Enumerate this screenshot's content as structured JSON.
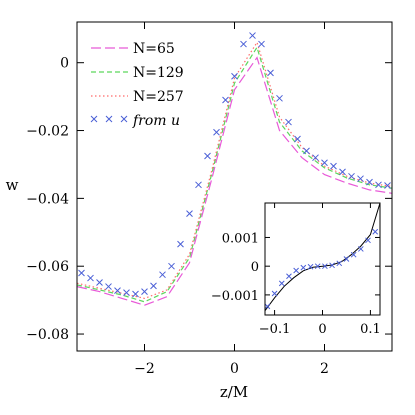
{
  "chart_data": [
    {
      "type": "line",
      "xlabel": "z/M",
      "ylabel": "w",
      "xlim": [
        -3.5,
        3.5
      ],
      "ylim": [
        -0.085,
        0.012
      ],
      "x_ticks": [
        -2,
        0,
        2
      ],
      "x_tick_labels": [
        "−2",
        "0",
        "2"
      ],
      "y_ticks": [
        0,
        -0.02,
        -0.04,
        -0.06,
        -0.08
      ],
      "y_tick_labels": [
        "0",
        "−0.02",
        "−0.04",
        "−0.06",
        "−0.08"
      ],
      "legend_position": "top-left",
      "series": [
        {
          "name": "N=65",
          "style": "long-dash",
          "color": "#e85ad8",
          "x": [
            -3.5,
            -3.0,
            -2.5,
            -2.0,
            -1.5,
            -1.0,
            -0.5,
            0.0,
            0.5,
            1.0,
            1.5,
            2.0,
            2.5,
            3.0,
            3.5
          ],
          "y": [
            -0.066,
            -0.0675,
            -0.0695,
            -0.0715,
            -0.069,
            -0.059,
            -0.034,
            -0.008,
            0.0015,
            -0.02,
            -0.028,
            -0.033,
            -0.0355,
            -0.0375,
            -0.0385
          ]
        },
        {
          "name": "N=129",
          "style": "short-dash",
          "color": "#5cd65c",
          "x": [
            -3.5,
            -3.0,
            -2.5,
            -2.0,
            -1.5,
            -1.0,
            -0.5,
            0.0,
            0.5,
            1.0,
            1.5,
            2.0,
            2.5,
            3.0,
            3.5
          ],
          "y": [
            -0.0655,
            -0.067,
            -0.0685,
            -0.0705,
            -0.0675,
            -0.0575,
            -0.0325,
            -0.006,
            0.0045,
            -0.0175,
            -0.026,
            -0.031,
            -0.034,
            -0.036,
            -0.037
          ]
        },
        {
          "name": "N=257",
          "style": "dotted",
          "color": "#ff6b6b",
          "x": [
            -3.5,
            -3.0,
            -2.5,
            -2.0,
            -1.5,
            -1.0,
            -0.5,
            0.0,
            0.5,
            1.0,
            1.5,
            2.0,
            2.5,
            3.0,
            3.5
          ],
          "y": [
            -0.065,
            -0.0665,
            -0.068,
            -0.0695,
            -0.067,
            -0.0565,
            -0.0315,
            -0.0045,
            0.006,
            -0.016,
            -0.025,
            -0.0305,
            -0.0335,
            -0.0355,
            -0.0365
          ]
        },
        {
          "name": "from u",
          "style": "markers",
          "marker": "x",
          "color": "#4a5fd6",
          "x": [
            -3.4,
            -3.2,
            -3.0,
            -2.8,
            -2.6,
            -2.4,
            -2.2,
            -2.0,
            -1.8,
            -1.6,
            -1.4,
            -1.2,
            -1.0,
            -0.8,
            -0.6,
            -0.4,
            -0.2,
            0.0,
            0.2,
            0.4,
            0.6,
            0.8,
            1.0,
            1.2,
            1.4,
            1.6,
            1.8,
            2.0,
            2.2,
            2.4,
            2.6,
            2.8,
            3.0,
            3.2,
            3.4
          ],
          "y": [
            -0.062,
            -0.0635,
            -0.0648,
            -0.066,
            -0.0672,
            -0.0678,
            -0.0682,
            -0.0675,
            -0.0658,
            -0.0625,
            -0.06,
            -0.0535,
            -0.0445,
            -0.036,
            -0.0275,
            -0.0205,
            -0.011,
            -0.004,
            0.0055,
            0.008,
            0.0055,
            -0.003,
            -0.0105,
            -0.0175,
            -0.0225,
            -0.026,
            -0.028,
            -0.0295,
            -0.0305,
            -0.0322,
            -0.0335,
            -0.0342,
            -0.0352,
            -0.036,
            -0.0362
          ]
        }
      ]
    },
    {
      "type": "line",
      "inset": true,
      "xlim": [
        -0.12,
        0.12
      ],
      "ylim": [
        -0.0017,
        0.0022
      ],
      "x_ticks": [
        -0.1,
        0,
        0.1
      ],
      "x_tick_labels": [
        "−0.1",
        "0",
        "0.1"
      ],
      "y_ticks": [
        0.001,
        0,
        -0.001
      ],
      "y_tick_labels": [
        "0.001",
        "0",
        "−0.001"
      ],
      "series": [
        {
          "style": "solid",
          "color": "#000000",
          "x": [
            -0.12,
            -0.1,
            -0.08,
            -0.06,
            -0.04,
            -0.02,
            0.0,
            0.02,
            0.04,
            0.06,
            0.08,
            0.1,
            0.12
          ],
          "y": [
            -0.00155,
            -0.0011,
            -0.0007,
            -0.0004,
            -0.00016,
            -4e-05,
            0.0,
            4e-05,
            0.00016,
            0.0004,
            0.0007,
            0.0011,
            0.0022
          ]
        },
        {
          "style": "markers",
          "marker": "x",
          "color": "#4a5fd6",
          "x": [
            -0.115,
            -0.1,
            -0.085,
            -0.07,
            -0.055,
            -0.04,
            -0.025,
            -0.01,
            0.005,
            0.02,
            0.035,
            0.05,
            0.065,
            0.08,
            0.095,
            0.11
          ],
          "y": [
            -0.0014,
            -0.00095,
            -0.0006,
            -0.00035,
            -0.00015,
            -5e-05,
            -2e-05,
            0.0,
            0.0,
            3e-05,
            0.0001,
            0.00025,
            0.0004,
            0.0006,
            0.0009,
            0.0012
          ]
        }
      ]
    }
  ]
}
